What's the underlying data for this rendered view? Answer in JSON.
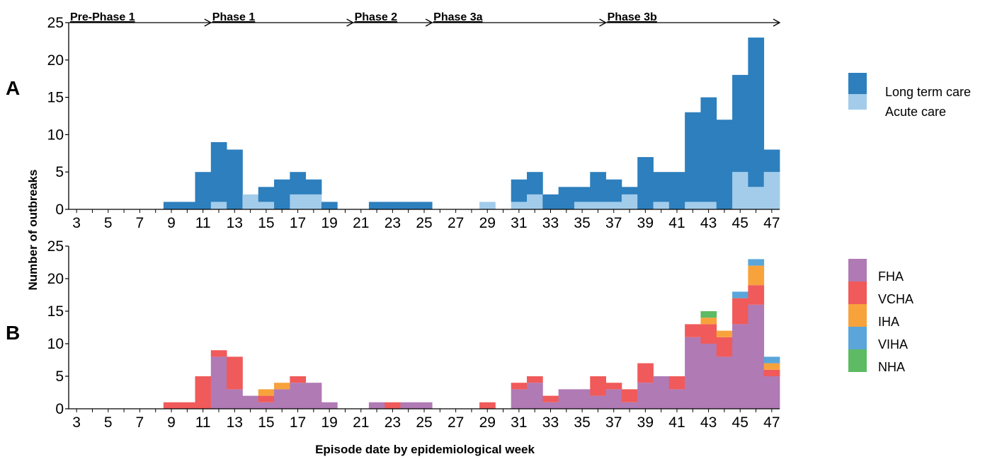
{
  "chart_data": [
    {
      "panel": "A",
      "type": "bar",
      "stacked": true,
      "x": [
        3,
        4,
        5,
        6,
        7,
        8,
        9,
        10,
        11,
        12,
        13,
        14,
        15,
        16,
        17,
        18,
        19,
        20,
        21,
        22,
        23,
        24,
        25,
        26,
        27,
        28,
        29,
        30,
        31,
        32,
        33,
        34,
        35,
        36,
        37,
        38,
        39,
        40,
        41,
        42,
        43,
        44,
        45,
        46,
        47
      ],
      "series": [
        {
          "name": "Acute care",
          "color": "#a3cceb",
          "values": [
            0,
            0,
            0,
            0,
            0,
            0,
            0,
            0,
            0,
            1,
            0,
            2,
            1,
            0,
            2,
            2,
            0,
            0,
            0,
            0,
            0,
            0,
            0,
            0,
            0,
            0,
            1,
            0,
            1,
            2,
            0,
            0,
            1,
            1,
            1,
            2,
            0,
            1,
            0,
            1,
            1,
            0,
            5,
            3,
            5
          ]
        },
        {
          "name": "Long term care",
          "color": "#2d7fbd",
          "values": [
            0,
            0,
            0,
            0,
            0,
            0,
            1,
            1,
            5,
            8,
            8,
            0,
            2,
            4,
            3,
            2,
            1,
            0,
            0,
            1,
            1,
            1,
            1,
            0,
            0,
            0,
            0,
            0,
            3,
            3,
            2,
            3,
            2,
            4,
            3,
            1,
            7,
            4,
            5,
            12,
            14,
            12,
            13,
            20,
            3
          ]
        }
      ],
      "ylim": [
        0,
        25
      ],
      "yticks": [
        "0",
        "5",
        "10",
        "15",
        "20",
        "25"
      ],
      "xtick_labels": [
        "3",
        "5",
        "7",
        "9",
        "11",
        "13",
        "15",
        "17",
        "19",
        "21",
        "23",
        "25",
        "27",
        "29",
        "31",
        "33",
        "35",
        "37",
        "39",
        "41",
        "43",
        "45",
        "47"
      ],
      "phases": [
        {
          "label": "Pre-Phase 1",
          "start": 2.5,
          "end": 11.5
        },
        {
          "label": "Phase 1",
          "start": 11.5,
          "end": 20.5
        },
        {
          "label": "Phase 2",
          "start": 20.5,
          "end": 25.5
        },
        {
          "label": "Phase 3a",
          "start": 25.5,
          "end": 36.5
        },
        {
          "label": "Phase 3b",
          "start": 36.5,
          "end": 47.5
        }
      ]
    },
    {
      "panel": "B",
      "type": "bar",
      "stacked": true,
      "x": [
        3,
        4,
        5,
        6,
        7,
        8,
        9,
        10,
        11,
        12,
        13,
        14,
        15,
        16,
        17,
        18,
        19,
        20,
        21,
        22,
        23,
        24,
        25,
        26,
        27,
        28,
        29,
        30,
        31,
        32,
        33,
        34,
        35,
        36,
        37,
        38,
        39,
        40,
        41,
        42,
        43,
        44,
        45,
        46,
        47
      ],
      "series": [
        {
          "name": "FHA",
          "color": "#b07ab5",
          "values": [
            0,
            0,
            0,
            0,
            0,
            0,
            0,
            0,
            0,
            8,
            3,
            2,
            1,
            3,
            4,
            4,
            1,
            0,
            0,
            1,
            0,
            1,
            1,
            0,
            0,
            0,
            0,
            0,
            3,
            4,
            1,
            3,
            3,
            2,
            3,
            1,
            4,
            5,
            3,
            11,
            10,
            8,
            13,
            16,
            5
          ]
        },
        {
          "name": "VCHA",
          "color": "#f05a5a",
          "values": [
            0,
            0,
            0,
            0,
            0,
            0,
            1,
            1,
            5,
            1,
            5,
            0,
            1,
            0,
            1,
            0,
            0,
            0,
            0,
            0,
            1,
            0,
            0,
            0,
            0,
            0,
            1,
            0,
            1,
            1,
            1,
            0,
            0,
            3,
            1,
            2,
            3,
            0,
            2,
            2,
            3,
            3,
            4,
            3,
            1
          ]
        },
        {
          "name": "IHA",
          "color": "#f8a23c",
          "values": [
            0,
            0,
            0,
            0,
            0,
            0,
            0,
            0,
            0,
            0,
            0,
            0,
            1,
            1,
            0,
            0,
            0,
            0,
            0,
            0,
            0,
            0,
            0,
            0,
            0,
            0,
            0,
            0,
            0,
            0,
            0,
            0,
            0,
            0,
            0,
            0,
            0,
            0,
            0,
            0,
            1,
            1,
            0,
            3,
            1
          ]
        },
        {
          "name": "VIHA",
          "color": "#5aa6da",
          "values": [
            0,
            0,
            0,
            0,
            0,
            0,
            0,
            0,
            0,
            0,
            0,
            0,
            0,
            0,
            0,
            0,
            0,
            0,
            0,
            0,
            0,
            0,
            0,
            0,
            0,
            0,
            0,
            0,
            0,
            0,
            0,
            0,
            0,
            0,
            0,
            0,
            0,
            0,
            0,
            0,
            0,
            0,
            1,
            1,
            1
          ]
        },
        {
          "name": "NHA",
          "color": "#5dbb63",
          "values": [
            0,
            0,
            0,
            0,
            0,
            0,
            0,
            0,
            0,
            0,
            0,
            0,
            0,
            0,
            0,
            0,
            0,
            0,
            0,
            0,
            0,
            0,
            0,
            0,
            0,
            0,
            0,
            0,
            0,
            0,
            0,
            0,
            0,
            0,
            0,
            0,
            0,
            0,
            0,
            0,
            1,
            0,
            0,
            0,
            0
          ]
        }
      ],
      "ylim": [
        0,
        25
      ],
      "yticks": [
        "0",
        "5",
        "10",
        "15",
        "20",
        "25"
      ],
      "xtick_labels": [
        "3",
        "5",
        "7",
        "9",
        "11",
        "13",
        "15",
        "17",
        "19",
        "21",
        "23",
        "25",
        "27",
        "29",
        "31",
        "33",
        "35",
        "37",
        "39",
        "41",
        "43",
        "45",
        "47"
      ]
    }
  ],
  "labels": {
    "panel_a": "A",
    "panel_b": "B",
    "ylabel": "Number of outbreaks",
    "xlabel": "Episode date by epidemiological week"
  },
  "legend_a": [
    {
      "label": "Long term care",
      "color": "#2d7fbd"
    },
    {
      "label": "Acute care",
      "color": "#a3cceb"
    }
  ],
  "legend_b": [
    {
      "label": "FHA",
      "color": "#b07ab5"
    },
    {
      "label": "VCHA",
      "color": "#f05a5a"
    },
    {
      "label": "IHA",
      "color": "#f8a23c"
    },
    {
      "label": "VIHA",
      "color": "#5aa6da"
    },
    {
      "label": "NHA",
      "color": "#5dbb63"
    }
  ]
}
